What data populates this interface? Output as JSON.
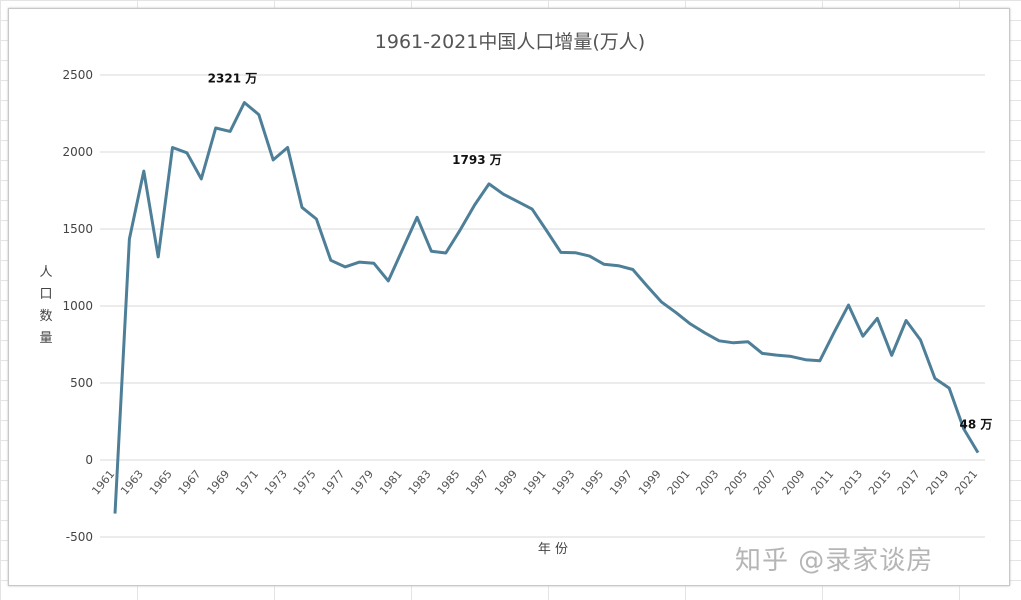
{
  "chart_data": {
    "type": "line",
    "title": "1961-2021中国人口增量(万人)",
    "xlabel": "年 份",
    "ylabel": "人口数量",
    "ylim": [
      -500,
      2500
    ],
    "yticks": [
      -500,
      0,
      500,
      1000,
      1500,
      2000,
      2500
    ],
    "grid": true,
    "x": [
      1961,
      1962,
      1963,
      1964,
      1965,
      1966,
      1967,
      1968,
      1969,
      1970,
      1971,
      1972,
      1973,
      1974,
      1975,
      1976,
      1977,
      1978,
      1979,
      1980,
      1981,
      1982,
      1983,
      1984,
      1985,
      1986,
      1987,
      1988,
      1989,
      1990,
      1991,
      1992,
      1993,
      1994,
      1995,
      1996,
      1997,
      1998,
      1999,
      2000,
      2001,
      2002,
      2003,
      2004,
      2005,
      2006,
      2007,
      2008,
      2009,
      2010,
      2011,
      2012,
      2013,
      2014,
      2015,
      2016,
      2017,
      2018,
      2019,
      2020,
      2021
    ],
    "series": [
      {
        "name": "人口增量",
        "color": "#4e7f98",
        "values": [
          -348,
          1436,
          1876,
          1319,
          2029,
          1995,
          1825,
          2156,
          2134,
          2321,
          2243,
          1949,
          2029,
          1640,
          1565,
          1297,
          1254,
          1285,
          1277,
          1163,
          1370,
          1576,
          1355,
          1344,
          1494,
          1656,
          1793,
          1726,
          1678,
          1629,
          1490,
          1348,
          1346,
          1324,
          1271,
          1262,
          1237,
          1129,
          1025,
          957,
          884,
          826,
          774,
          761,
          768,
          692,
          681,
          673,
          651,
          644,
          830,
          1006,
          804,
          920,
          680,
          906,
          779,
          530,
          467,
          204,
          48
        ]
      }
    ],
    "annotations": [
      {
        "year": 1970,
        "text": "2321 万"
      },
      {
        "year": 1987,
        "text": "1793 万"
      },
      {
        "year": 2021,
        "text": "48 万"
      }
    ]
  },
  "watermark": "知乎 @录家谈房"
}
